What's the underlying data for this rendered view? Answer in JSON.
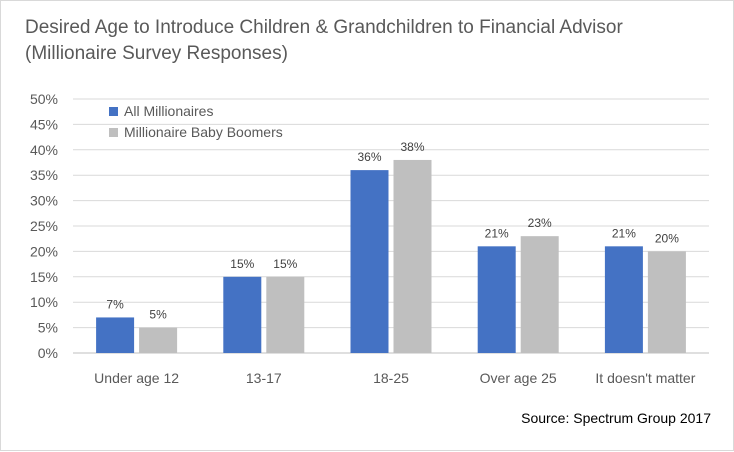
{
  "chart_data": {
    "type": "bar",
    "title": "Desired Age to Introduce Children & Grandchildren to Financial Advisor (Millionaire Survey Responses)",
    "categories": [
      "Under age 12",
      "13-17",
      "18-25",
      "Over age 25",
      "It doesn't matter"
    ],
    "series": [
      {
        "name": "All Millionaires",
        "color": "#4472c4",
        "values": [
          7,
          15,
          36,
          21,
          21
        ],
        "labels": [
          "7%",
          "15%",
          "36%",
          "21%",
          "21%"
        ]
      },
      {
        "name": "Millionaire Baby Boomers",
        "color": "#bfbfbf",
        "values": [
          5,
          15,
          38,
          23,
          20
        ],
        "labels": [
          "5%",
          "15%",
          "38%",
          "23%",
          "20%"
        ]
      }
    ],
    "ylim": [
      0,
      50
    ],
    "yticks": [
      0,
      5,
      10,
      15,
      20,
      25,
      30,
      35,
      40,
      45,
      50
    ],
    "ytick_labels": [
      "0%",
      "5%",
      "10%",
      "15%",
      "20%",
      "25%",
      "30%",
      "35%",
      "40%",
      "45%",
      "50%"
    ],
    "grid": true,
    "legend_position": "top-left",
    "source": "Source: Spectrum Group 2017"
  }
}
